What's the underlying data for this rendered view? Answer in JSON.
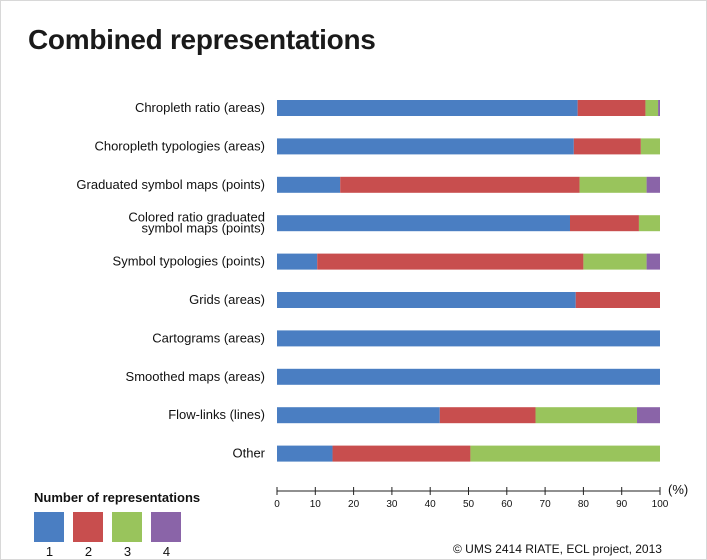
{
  "title": "Combined representations",
  "credit": "© UMS 2414 RIATE, ECL project, 2013",
  "colors": {
    "1": "#4a7ec2",
    "2": "#c84e4e",
    "3": "#99c45c",
    "4": "#8a64a8"
  },
  "legend": {
    "title": "Number of representations",
    "items": [
      "1",
      "2",
      "3",
      "4"
    ]
  },
  "chart_data": {
    "type": "bar",
    "orientation": "horizontal",
    "stacked": true,
    "categories": [
      "Chropleth ratio (areas)",
      "Choropleth typologies (areas)",
      "Graduated symbol maps (points)",
      "Colored ratio graduated\nsymbol maps  (points)",
      "Symbol typologies (points)",
      "Grids (areas)",
      "Cartograms (areas)",
      "Smoothed maps (areas)",
      "Flow-links (lines)",
      "Other"
    ],
    "series": [
      {
        "name": "1",
        "values": [
          78.5,
          77.5,
          16.5,
          76.5,
          10.5,
          78,
          100,
          100,
          42.5,
          14.5
        ]
      },
      {
        "name": "2",
        "values": [
          17.7,
          17.5,
          62.5,
          18,
          69.5,
          22,
          0,
          0,
          25,
          36
        ]
      },
      {
        "name": "3",
        "values": [
          3.3,
          5,
          17.5,
          5.5,
          16.5,
          0,
          0,
          0,
          26.5,
          49.5
        ]
      },
      {
        "name": "4",
        "values": [
          0.5,
          0,
          3.5,
          0,
          3.5,
          0,
          0,
          0,
          6,
          0
        ]
      }
    ],
    "xlim": [
      0,
      100
    ],
    "xticks": [
      0,
      10,
      20,
      30,
      40,
      50,
      60,
      70,
      80,
      90,
      100
    ],
    "xunit": "(%)",
    "legend_position": "bottom-left"
  }
}
